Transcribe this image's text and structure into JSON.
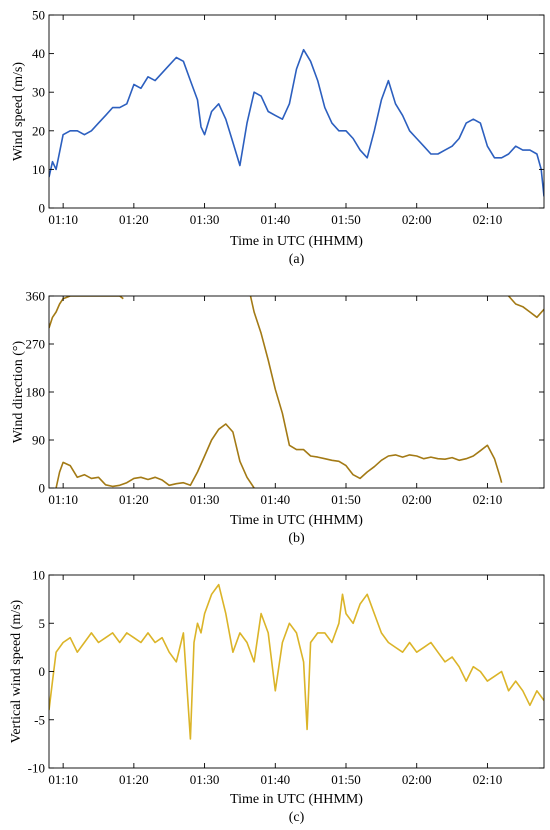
{
  "chart_data": [
    {
      "type": "line",
      "caption": "(a)",
      "xlabel": "Time in UTC (HHMM)",
      "ylabel": "Wind speed (m/s)",
      "xlim": [
        68,
        138
      ],
      "ylim": [
        0,
        50
      ],
      "xticks": [
        70,
        80,
        90,
        100,
        110,
        120,
        130
      ],
      "xtick_labels": [
        "01:10",
        "01:20",
        "01:30",
        "01:40",
        "01:50",
        "02:00",
        "02:10"
      ],
      "yticks": [
        0,
        10,
        20,
        30,
        40,
        50
      ],
      "series": [
        {
          "color": "#2c5fbf",
          "x": [
            68,
            68.5,
            69,
            70,
            71,
            72,
            73,
            74,
            75,
            76,
            77,
            78,
            79,
            80,
            81,
            82,
            83,
            84,
            85,
            86,
            87,
            88,
            89,
            89.5,
            90,
            91,
            92,
            93,
            94,
            95,
            96,
            97,
            98,
            99,
            100,
            101,
            102,
            103,
            104,
            105,
            106,
            107,
            108,
            109,
            110,
            111,
            112,
            113,
            114,
            115,
            116,
            117,
            118,
            119,
            120,
            121,
            122,
            123,
            124,
            125,
            126,
            127,
            128,
            129,
            130,
            131,
            132,
            133,
            134,
            135,
            136,
            137,
            137.6,
            138
          ],
          "y": [
            8,
            12,
            10,
            19,
            20,
            20,
            19,
            20,
            22,
            24,
            26,
            26,
            27,
            32,
            31,
            34,
            33,
            35,
            37,
            39,
            38,
            33,
            28,
            21,
            19,
            25,
            27,
            23,
            17,
            11,
            22,
            30,
            29,
            25,
            24,
            23,
            27,
            36,
            41,
            38,
            33,
            26,
            22,
            20,
            20,
            18,
            15,
            13,
            20,
            28,
            33,
            27,
            24,
            20,
            18,
            16,
            14,
            14,
            15,
            16,
            18,
            22,
            23,
            22,
            16,
            13,
            13,
            14,
            16,
            15,
            15,
            14,
            10,
            3
          ]
        }
      ]
    },
    {
      "type": "line",
      "caption": "(b)",
      "xlabel": "Time in UTC (HHMM)",
      "ylabel": "Wind direction (°)",
      "xlim": [
        68,
        138
      ],
      "ylim": [
        0,
        360
      ],
      "xticks": [
        70,
        80,
        90,
        100,
        110,
        120,
        130
      ],
      "xtick_labels": [
        "01:10",
        "01:20",
        "01:30",
        "01:40",
        "01:50",
        "02:00",
        "02:10"
      ],
      "yticks": [
        0,
        90,
        180,
        270,
        360
      ],
      "series": [
        {
          "color": "#a37a15",
          "x": [
            68,
            68.5,
            69,
            69.5,
            70,
            71,
            72,
            73,
            74,
            75,
            76,
            77,
            78,
            78.5
          ],
          "y": [
            300,
            320,
            330,
            345,
            355,
            360,
            360,
            360,
            360,
            360,
            360,
            360,
            360,
            355
          ]
        },
        {
          "color": "#a37a15",
          "x": [
            69,
            69.5,
            70,
            71,
            72,
            73,
            74,
            75,
            76,
            77,
            78,
            79,
            80,
            81,
            82,
            83,
            84,
            85,
            86,
            87,
            88,
            89,
            90,
            91,
            92,
            93,
            94,
            95,
            96,
            97
          ],
          "y": [
            0,
            30,
            48,
            42,
            20,
            25,
            18,
            20,
            6,
            3,
            5,
            10,
            18,
            20,
            16,
            20,
            15,
            5,
            8,
            10,
            5,
            30,
            60,
            90,
            110,
            120,
            105,
            50,
            20,
            0
          ]
        },
        {
          "color": "#a37a15",
          "x": [
            96.5,
            97,
            98,
            99,
            100,
            101,
            102,
            103,
            104,
            105,
            106,
            107,
            108,
            109,
            110,
            111,
            112,
            113,
            114,
            115,
            116,
            117,
            118,
            119,
            120,
            121,
            122,
            123,
            124,
            125,
            126,
            127,
            128,
            129,
            130,
            131,
            131.8,
            132
          ],
          "y": [
            360,
            330,
            290,
            240,
            185,
            140,
            80,
            72,
            72,
            60,
            58,
            55,
            52,
            50,
            42,
            25,
            18,
            30,
            40,
            52,
            60,
            62,
            58,
            62,
            60,
            55,
            58,
            55,
            54,
            57,
            52,
            55,
            60,
            70,
            80,
            55,
            20,
            10
          ]
        },
        {
          "color": "#a37a15",
          "x": [
            133,
            134,
            135,
            136,
            137,
            138
          ],
          "y": [
            360,
            345,
            340,
            330,
            320,
            335
          ]
        }
      ]
    },
    {
      "type": "line",
      "caption": "(c)",
      "xlabel": "Time in UTC (HHMM)",
      "ylabel": "Vertical wind speed (m/s)",
      "xlim": [
        68,
        138
      ],
      "ylim": [
        -10,
        10
      ],
      "xticks": [
        70,
        80,
        90,
        100,
        110,
        120,
        130
      ],
      "xtick_labels": [
        "01:10",
        "01:20",
        "01:30",
        "01:40",
        "01:50",
        "02:00",
        "02:10"
      ],
      "yticks": [
        -10,
        -5,
        0,
        5,
        10
      ],
      "series": [
        {
          "color": "#dbb428",
          "x": [
            68,
            68.5,
            69,
            70,
            71,
            72,
            73,
            74,
            75,
            76,
            77,
            78,
            79,
            80,
            81,
            82,
            83,
            84,
            85,
            86,
            87,
            88,
            88.5,
            89,
            89.5,
            90,
            91,
            92,
            93,
            94,
            95,
            96,
            97,
            98,
            99,
            100,
            101,
            102,
            103,
            104,
            104.5,
            105,
            106,
            107,
            108,
            109,
            109.5,
            110,
            111,
            112,
            113,
            114,
            115,
            116,
            117,
            118,
            119,
            120,
            121,
            122,
            123,
            124,
            125,
            126,
            127,
            128,
            129,
            130,
            131,
            132,
            133,
            134,
            135,
            136,
            137,
            138
          ],
          "y": [
            -4,
            -1,
            2,
            3,
            3.5,
            2,
            3,
            4,
            3,
            3.5,
            4,
            3,
            4,
            3.5,
            3,
            4,
            3,
            3.5,
            2,
            1,
            4,
            -7,
            3,
            5,
            4,
            6,
            8,
            9,
            6,
            2,
            4,
            3,
            1,
            6,
            4,
            -2,
            3,
            5,
            4,
            1,
            -6,
            3,
            4,
            4,
            3,
            5,
            8,
            6,
            5,
            7,
            8,
            6,
            4,
            3,
            2.5,
            2,
            3,
            2,
            2.5,
            3,
            2,
            1,
            1.5,
            0.5,
            -1,
            0.5,
            0,
            -1,
            -0.5,
            0,
            -2,
            -1,
            -2,
            -3.5,
            -2,
            -3
          ]
        }
      ]
    }
  ]
}
